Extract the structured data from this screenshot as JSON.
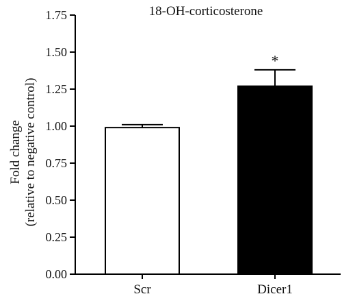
{
  "chart_data": {
    "type": "bar",
    "title": "18-OH-corticosterone",
    "ylabel_line1": "Fold change",
    "ylabel_line2": "(relative to negative control)",
    "ylim": [
      0,
      1.75
    ],
    "yticks": [
      "0.00",
      "0.25",
      "0.50",
      "0.75",
      "1.00",
      "1.25",
      "1.50",
      "1.75"
    ],
    "categories": [
      "Scr",
      "Dicer1"
    ],
    "values": [
      0.99,
      1.27
    ],
    "errors": [
      0.02,
      0.11
    ],
    "fill_colors": [
      "#ffffff",
      "#000000"
    ],
    "annotations": [
      "",
      "*"
    ]
  }
}
